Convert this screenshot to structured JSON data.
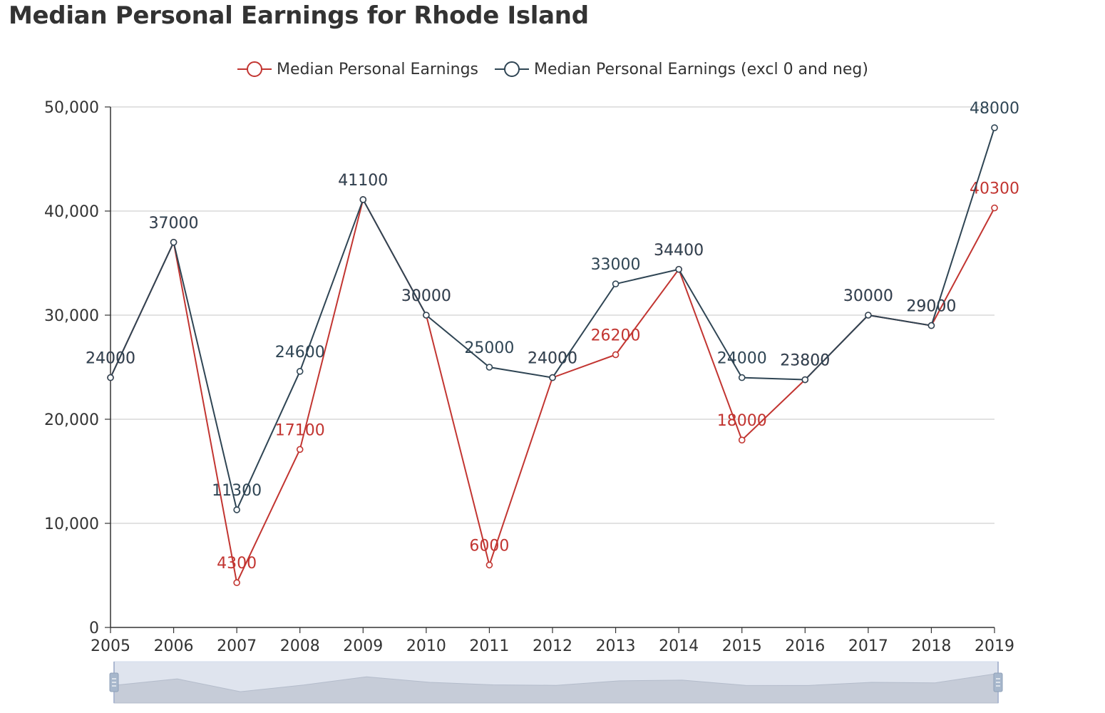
{
  "chart_data": {
    "type": "line",
    "title": "Median Personal Earnings for Rhode Island",
    "categories": [
      "2005",
      "2006",
      "2007",
      "2008",
      "2009",
      "2010",
      "2011",
      "2012",
      "2013",
      "2014",
      "2015",
      "2016",
      "2017",
      "2018",
      "2019"
    ],
    "series": [
      {
        "name": "Median Personal Earnings",
        "color": "#c23531",
        "values": [
          24000,
          37000,
          4300,
          17100,
          41100,
          30000,
          6000,
          24000,
          26200,
          34400,
          18000,
          23800,
          30000,
          29000,
          40300
        ]
      },
      {
        "name": "Median Personal Earnings (excl 0 and neg)",
        "color": "#2f4554",
        "values": [
          24000,
          37000,
          11300,
          24600,
          41100,
          30000,
          25000,
          24000,
          33000,
          34400,
          24000,
          23800,
          30000,
          29000,
          48000
        ]
      }
    ],
    "ylim": [
      0,
      50000
    ],
    "yticks": [
      "0",
      "10,000",
      "20,000",
      "30,000",
      "40,000",
      "50,000"
    ],
    "grid": true,
    "legend_position": "top-center",
    "data_labels": true,
    "data_zoom_slider": true
  }
}
